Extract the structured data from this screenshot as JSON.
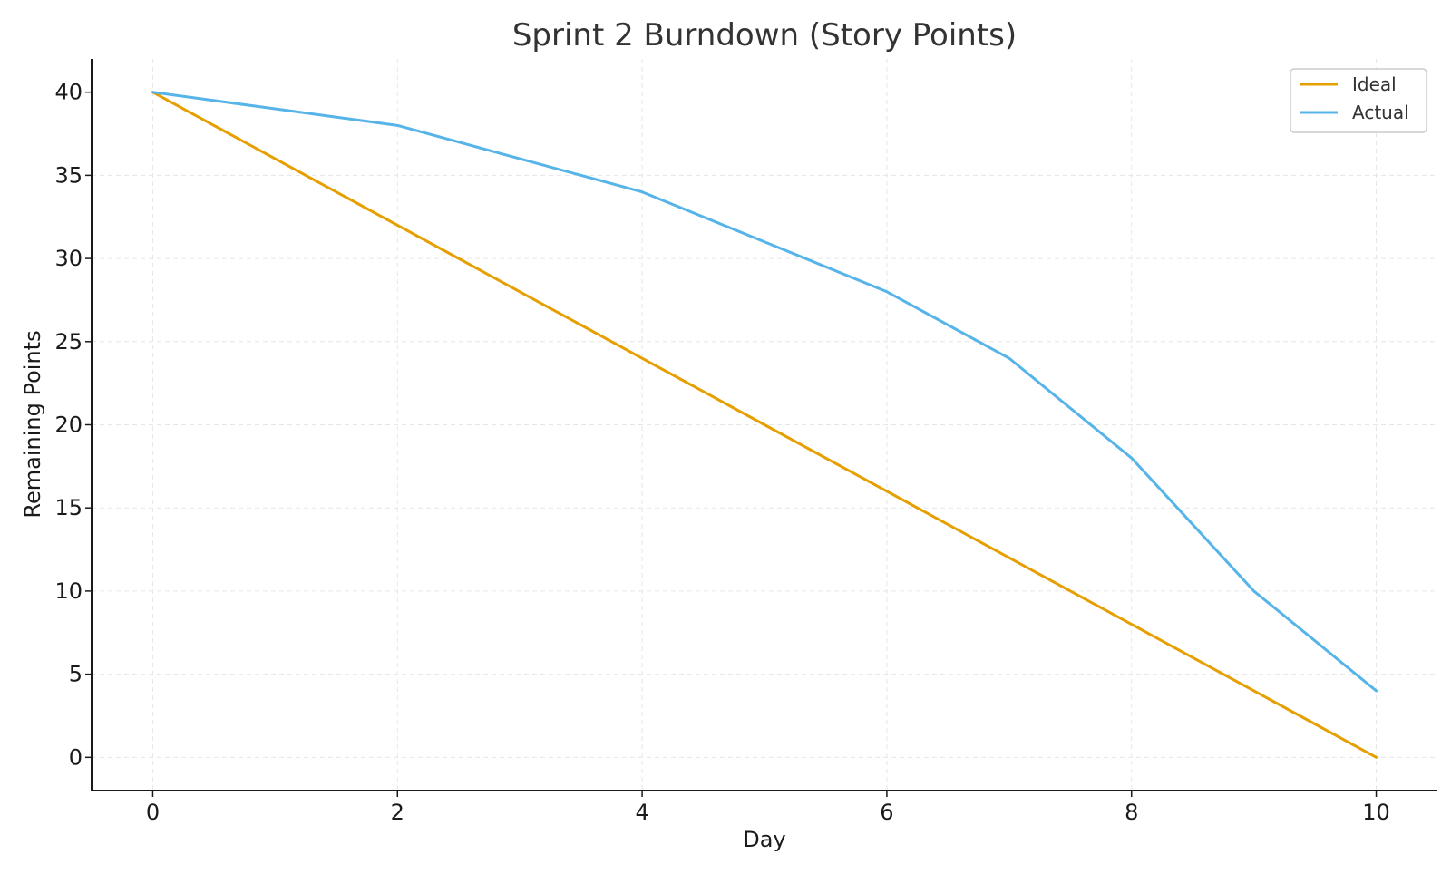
{
  "chart_data": {
    "type": "line",
    "title": "Sprint 2 Burndown (Story Points)",
    "xlabel": "Day",
    "ylabel": "Remaining Points",
    "xlim": [
      -0.5,
      10.5
    ],
    "ylim": [
      -2,
      42
    ],
    "x_ticks": [
      0,
      2,
      4,
      6,
      8,
      10
    ],
    "y_ticks": [
      0,
      5,
      10,
      15,
      20,
      25,
      30,
      35,
      40
    ],
    "grid": true,
    "legend": "top-right",
    "x": [
      0,
      1,
      2,
      3,
      4,
      5,
      6,
      7,
      8,
      9,
      10
    ],
    "series": [
      {
        "name": "Ideal",
        "color": "#e69f00",
        "values": [
          40,
          36,
          32,
          28,
          24,
          20,
          16,
          12,
          8,
          4,
          0
        ]
      },
      {
        "name": "Actual",
        "color": "#56b4e9",
        "values": [
          40,
          39,
          38,
          36,
          34,
          31,
          28,
          24,
          18,
          10,
          4
        ]
      }
    ]
  }
}
